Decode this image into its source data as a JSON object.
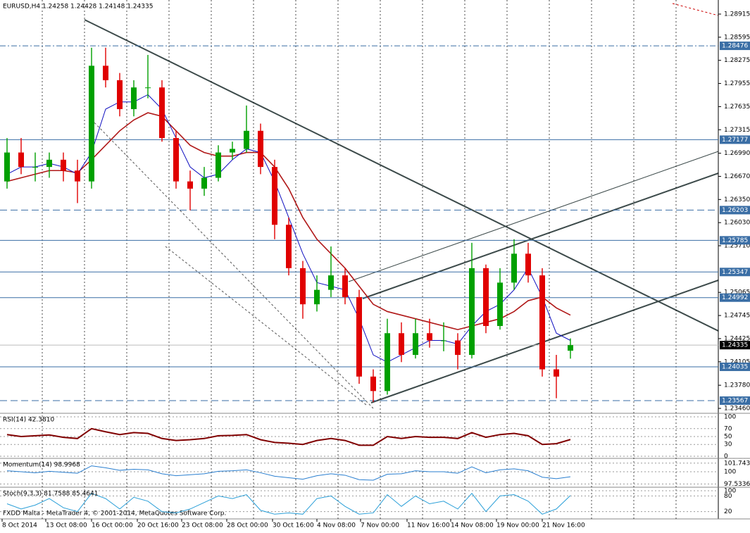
{
  "chart_data": {
    "type": "candlestick",
    "title": "EURUSD,H4  1.24258 1.24428 1.24148 1.24335",
    "open": [
      1.266,
      1.27,
      1.268,
      1.268,
      1.269,
      1.2675,
      1.266,
      1.282,
      1.28,
      1.276,
      1.279,
      1.279,
      1.272,
      1.266,
      1.265,
      1.2665,
      1.27,
      1.2705,
      1.273,
      1.268,
      1.26,
      1.254,
      1.249,
      1.251,
      1.253,
      1.25,
      1.239,
      1.237,
      1.245,
      1.242,
      1.245,
      1.244,
      1.244,
      1.242,
      1.254,
      1.246,
      1.252,
      1.256,
      1.253,
      1.24,
      1.24258
    ],
    "high": [
      1.272,
      1.272,
      1.27,
      1.27,
      1.27,
      1.269,
      1.2845,
      1.2845,
      1.281,
      1.28,
      1.2835,
      1.28,
      1.273,
      1.2675,
      1.268,
      1.271,
      1.2715,
      1.2765,
      1.274,
      1.269,
      1.261,
      1.255,
      1.253,
      1.257,
      1.254,
      1.251,
      1.24,
      1.247,
      1.2465,
      1.247,
      1.247,
      1.2465,
      1.245,
      1.2575,
      1.2545,
      1.254,
      1.258,
      1.2575,
      1.254,
      1.242,
      1.24428
    ],
    "low": [
      1.265,
      1.267,
      1.266,
      1.2665,
      1.266,
      1.263,
      1.265,
      1.279,
      1.275,
      1.275,
      1.2775,
      1.2715,
      1.265,
      1.262,
      1.264,
      1.266,
      1.269,
      1.27,
      1.267,
      1.258,
      1.253,
      1.247,
      1.248,
      1.25,
      1.249,
      1.238,
      1.2355,
      1.2365,
      1.241,
      1.2415,
      1.243,
      1.2425,
      1.24,
      1.2415,
      1.245,
      1.2455,
      1.251,
      1.252,
      1.239,
      1.236,
      1.24148
    ],
    "close": [
      1.27,
      1.268,
      1.268,
      1.269,
      1.2675,
      1.266,
      1.282,
      1.28,
      1.276,
      1.279,
      1.279,
      1.272,
      1.266,
      1.265,
      1.2665,
      1.27,
      1.2705,
      1.273,
      1.268,
      1.26,
      1.254,
      1.249,
      1.251,
      1.253,
      1.25,
      1.239,
      1.237,
      1.245,
      1.242,
      1.245,
      1.244,
      1.244,
      1.242,
      1.254,
      1.246,
      1.252,
      1.256,
      1.253,
      1.24,
      1.239,
      1.24335
    ],
    "up_color": "#00a000",
    "down_color": "#e00000",
    "ma_fast": {
      "color": "#1010c0",
      "values": [
        1.267,
        1.268,
        1.268,
        1.2685,
        1.268,
        1.267,
        1.27,
        1.276,
        1.277,
        1.277,
        1.278,
        1.276,
        1.272,
        1.268,
        1.2665,
        1.267,
        1.269,
        1.2705,
        1.27,
        1.266,
        1.261,
        1.256,
        1.252,
        1.2515,
        1.251,
        1.247,
        1.242,
        1.241,
        1.242,
        1.243,
        1.244,
        1.244,
        1.2435,
        1.246,
        1.248,
        1.249,
        1.251,
        1.254,
        1.25,
        1.245,
        1.244
      ]
    },
    "ma_slow": {
      "color": "#b01818",
      "values": [
        1.266,
        1.2665,
        1.267,
        1.2675,
        1.2675,
        1.2672,
        1.269,
        1.271,
        1.273,
        1.2745,
        1.2755,
        1.275,
        1.273,
        1.271,
        1.27,
        1.2695,
        1.2695,
        1.27,
        1.27,
        1.268,
        1.265,
        1.261,
        1.258,
        1.256,
        1.254,
        1.2515,
        1.249,
        1.248,
        1.2475,
        1.247,
        1.2465,
        1.246,
        1.2455,
        1.246,
        1.2465,
        1.247,
        1.248,
        1.2495,
        1.25,
        1.2485,
        1.2475
      ]
    },
    "ylim": [
      1.2346,
      1.28915
    ],
    "yticks": [
      1.28915,
      1.28595,
      1.28275,
      1.27955,
      1.27635,
      1.27315,
      {
        "value": 1.2699,
        "label": "1.26990"
      },
      {
        "value": 1.2667,
        "label": "1.26670"
      },
      {
        "value": 1.2635,
        "label": "1.26350"
      },
      {
        "value": 1.2603,
        "label": "1.26030"
      },
      {
        "value": 1.2571,
        "label": "1.25710"
      },
      1.25065,
      1.24745,
      1.24425,
      1.24105,
      {
        "value": 1.2378,
        "label": "1.23780"
      },
      {
        "value": 1.2346,
        "label": "1.23460"
      }
    ],
    "levels": [
      {
        "value": 1.28476,
        "dash": "dashdot"
      },
      {
        "value": 1.27177,
        "dash": "solid"
      },
      {
        "value": 1.26203,
        "dash": "long"
      },
      {
        "value": 1.25785,
        "dash": "solid"
      },
      {
        "value": 1.25347,
        "dash": "solid"
      },
      {
        "value": 1.24992,
        "dash": "solid"
      },
      {
        "value": 1.24035,
        "dash": "solid"
      },
      {
        "value": 1.23567,
        "dash": "long"
      }
    ],
    "last_price": 1.24335,
    "level_color": "#3a6ea5",
    "x_labels": [
      "8 Oct 2014",
      "13 Oct 08:00",
      "16 Oct 00:00",
      "20 Oct 16:00",
      "23 Oct 08:00",
      "28 Oct 00:00",
      "30 Oct 16:00",
      "4 Nov 08:00",
      "7 Nov 00:00",
      "11 Nov 16:00",
      "14 Nov 08:00",
      "19 Nov 00:00",
      "21 Nov 16:00"
    ],
    "copyright": "FXDD Malta - MetaTrader 4, © 2001-2014, MetaQuotes Software Corp.",
    "indicators": [
      {
        "title": "RSI(14) 42.3810",
        "color": "#800000",
        "ylim": [
          0,
          100
        ],
        "yticks": [
          100,
          70,
          50,
          30,
          0
        ],
        "values": [
          55,
          50,
          52,
          54,
          48,
          45,
          70,
          62,
          55,
          60,
          58,
          45,
          40,
          42,
          45,
          52,
          53,
          55,
          42,
          35,
          33,
          30,
          40,
          45,
          40,
          28,
          28,
          50,
          45,
          50,
          48,
          48,
          45,
          60,
          48,
          55,
          58,
          52,
          30,
          32,
          42.381
        ]
      },
      {
        "title": "Momentum(14) 98.9968",
        "color": "#2a7fd0",
        "ylim": [
          97.3,
          102.0
        ],
        "yticks": [
          101.7433,
          100,
          97.5336
        ],
        "values": [
          100.2,
          100.0,
          99.8,
          100.1,
          99.9,
          99.7,
          101.2,
          100.8,
          100.3,
          100.5,
          100.4,
          99.6,
          99.2,
          99.4,
          99.6,
          100.1,
          100.2,
          100.4,
          99.8,
          99.1,
          98.8,
          98.5,
          99.2,
          99.6,
          99.3,
          98.4,
          98.3,
          99.5,
          99.6,
          100.2,
          100.0,
          100.0,
          99.7,
          101.0,
          99.8,
          100.4,
          100.6,
          100.2,
          98.9,
          98.6,
          98.9968
        ]
      },
      {
        "title": "Stoch(9,3,3) 81.7588 85.4641",
        "color": "#2a9fd8",
        "ylim": [
          0,
          100
        ],
        "yticks": [
          100,
          80,
          20
        ],
        "values": [
          50,
          30,
          45,
          70,
          35,
          20,
          90,
          70,
          30,
          75,
          60,
          20,
          15,
          30,
          55,
          80,
          70,
          85,
          25,
          10,
          15,
          10,
          70,
          80,
          40,
          10,
          15,
          85,
          40,
          80,
          50,
          60,
          30,
          90,
          20,
          80,
          85,
          60,
          10,
          30,
          81.7588
        ]
      }
    ]
  }
}
